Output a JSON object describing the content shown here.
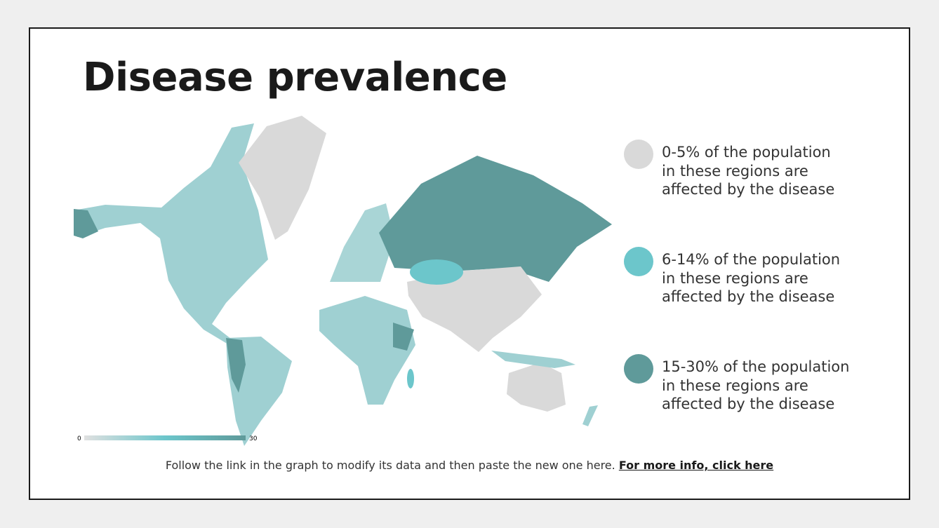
{
  "header": {
    "title": "Disease prevalence"
  },
  "legend": [
    {
      "lines": [
        "0-5% of the population",
        "in these regions are",
        "affected by the disease"
      ],
      "color": "#d9d9d9"
    },
    {
      "lines": [
        "6-14% of the population",
        "in these regions are",
        "affected by the disease"
      ],
      "color": "#6cc6cb"
    },
    {
      "lines": [
        "15-30% of the population",
        "in these regions are",
        "affected by the disease"
      ],
      "color": "#5f9a9a"
    }
  ],
  "scale": {
    "min": 0,
    "max": 30
  },
  "footer": {
    "text": "Follow the link in the graph to modify its data and then paste the new one here.",
    "link": "For more info, click here"
  }
}
